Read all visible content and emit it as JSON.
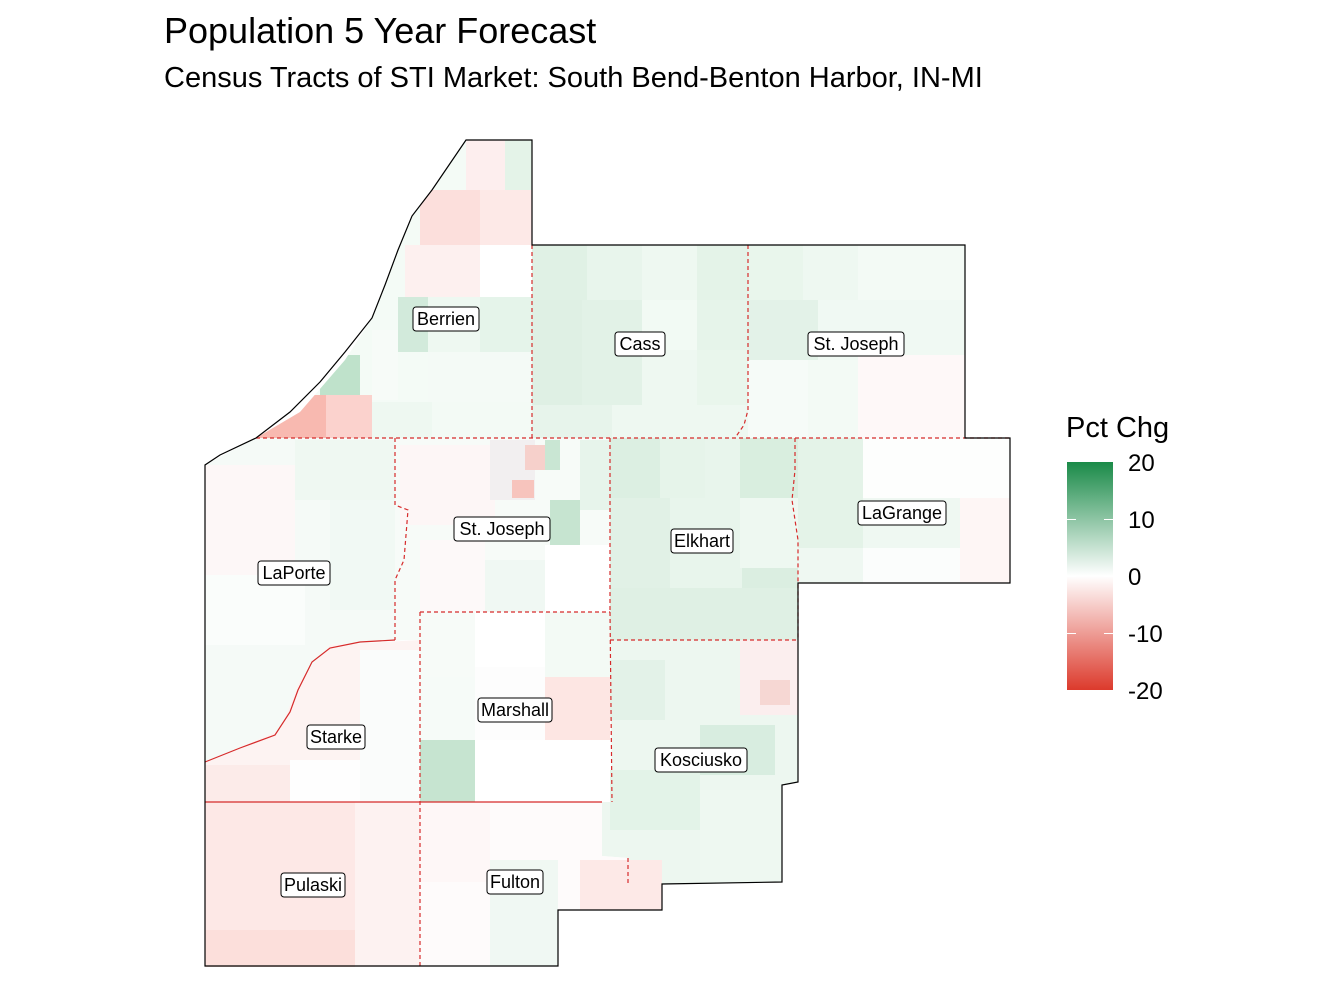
{
  "title": "Population 5 Year Forecast",
  "subtitle": "Census Tracts of STI Market: South Bend-Benton Harbor, IN-MI",
  "legend": {
    "title": "Pct Chg",
    "ticks": [
      "20",
      "10",
      "0",
      "-10",
      "-20"
    ],
    "colors": {
      "high": "#1a8a48",
      "mid": "#ffffff",
      "low": "#dc3a2c"
    }
  },
  "counties": [
    {
      "id": "berrien",
      "label": "Berrien"
    },
    {
      "id": "cass",
      "label": "Cass"
    },
    {
      "id": "st-joseph-mi",
      "label": "St. Joseph"
    },
    {
      "id": "laporte",
      "label": "LaPorte"
    },
    {
      "id": "st-joseph-in",
      "label": "St. Joseph"
    },
    {
      "id": "elkhart",
      "label": "Elkhart"
    },
    {
      "id": "lagrange",
      "label": "LaGrange"
    },
    {
      "id": "starke",
      "label": "Starke"
    },
    {
      "id": "marshall",
      "label": "Marshall"
    },
    {
      "id": "kosciusko",
      "label": "Kosciusko"
    },
    {
      "id": "pulaski",
      "label": "Pulaski"
    },
    {
      "id": "fulton",
      "label": "Fulton"
    }
  ]
}
